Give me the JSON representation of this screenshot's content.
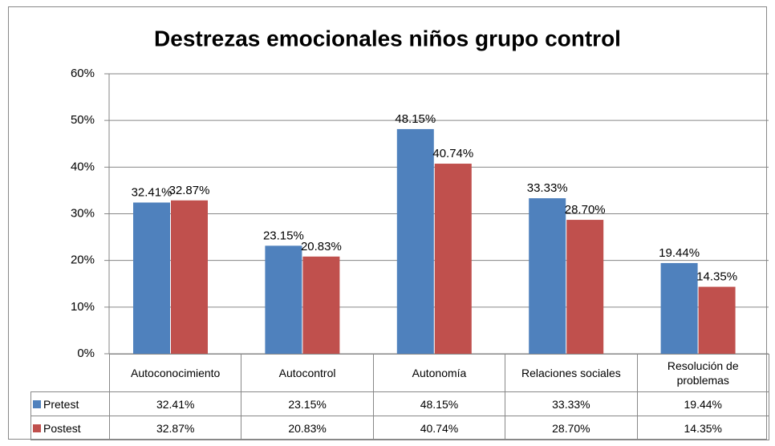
{
  "chart_data": {
    "type": "bar",
    "title": "Destrezas emocionales niños grupo control",
    "categories": [
      "Autoconocimiento",
      "Autocontrol",
      "Autonomía",
      "Relaciones sociales",
      "Resolución de problemas"
    ],
    "series": [
      {
        "name": "Pretest",
        "color": "#4f81bd",
        "values": [
          32.41,
          23.15,
          48.15,
          33.33,
          19.44
        ],
        "value_labels": [
          "32.41%",
          "23.15%",
          "48.15%",
          "33.33%",
          "19.44%"
        ]
      },
      {
        "name": "Postest",
        "color": "#c0504d",
        "values": [
          32.87,
          20.83,
          40.74,
          28.7,
          14.35
        ],
        "value_labels": [
          "32.87%",
          "20.83%",
          "40.74%",
          "28.70%",
          "14.35%"
        ]
      }
    ],
    "ylim": [
      0,
      60
    ],
    "yticks": [
      {
        "value": 0,
        "label": "0%"
      },
      {
        "value": 10,
        "label": "10%"
      },
      {
        "value": 20,
        "label": "20%"
      },
      {
        "value": 30,
        "label": "30%"
      },
      {
        "value": 40,
        "label": "40%"
      },
      {
        "value": 50,
        "label": "50%"
      },
      {
        "value": 60,
        "label": "60%"
      }
    ],
    "grid": true
  }
}
